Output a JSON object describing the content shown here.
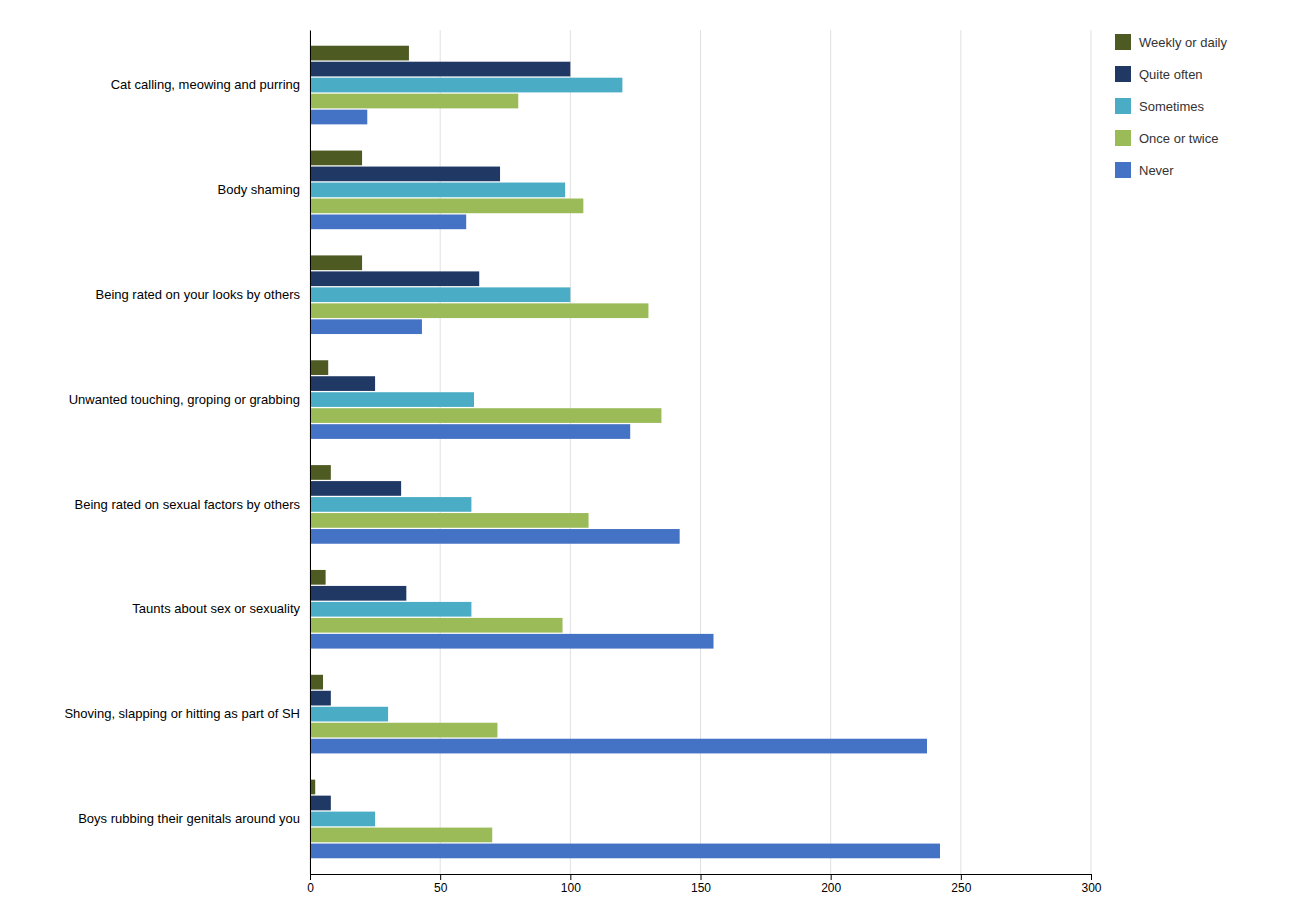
{
  "chart_data": {
    "type": "bar",
    "orientation": "horizontal",
    "categories": [
      "Cat calling, meowing and purring",
      "Body shaming",
      "Being rated on your looks by others",
      "Unwanted touching, groping or grabbing",
      "Being rated on sexual factors by others",
      "Taunts about sex or sexuality",
      "Shoving, slapping or hitting as part of SH",
      "Boys rubbing their genitals around you"
    ],
    "series": [
      {
        "name": "Weekly or daily",
        "color": "#4d5a21",
        "values": [
          38,
          20,
          20,
          7,
          8,
          6,
          5,
          2
        ]
      },
      {
        "name": "Quite often",
        "color": "#1f3864",
        "values": [
          100,
          73,
          65,
          25,
          35,
          37,
          8,
          8
        ]
      },
      {
        "name": "Sometimes",
        "color": "#4bacc6",
        "values": [
          120,
          98,
          100,
          63,
          62,
          62,
          30,
          25
        ]
      },
      {
        "name": "Once or twice",
        "color": "#9bbb59",
        "values": [
          80,
          105,
          130,
          135,
          107,
          97,
          72,
          70
        ]
      },
      {
        "name": "Never",
        "color": "#4472c4",
        "values": [
          22,
          60,
          43,
          123,
          142,
          155,
          237,
          242
        ]
      }
    ],
    "xlim": [
      0,
      300
    ],
    "xticks": [
      0,
      50,
      100,
      150,
      200,
      250,
      300
    ],
    "grid": true,
    "legend": "right"
  }
}
